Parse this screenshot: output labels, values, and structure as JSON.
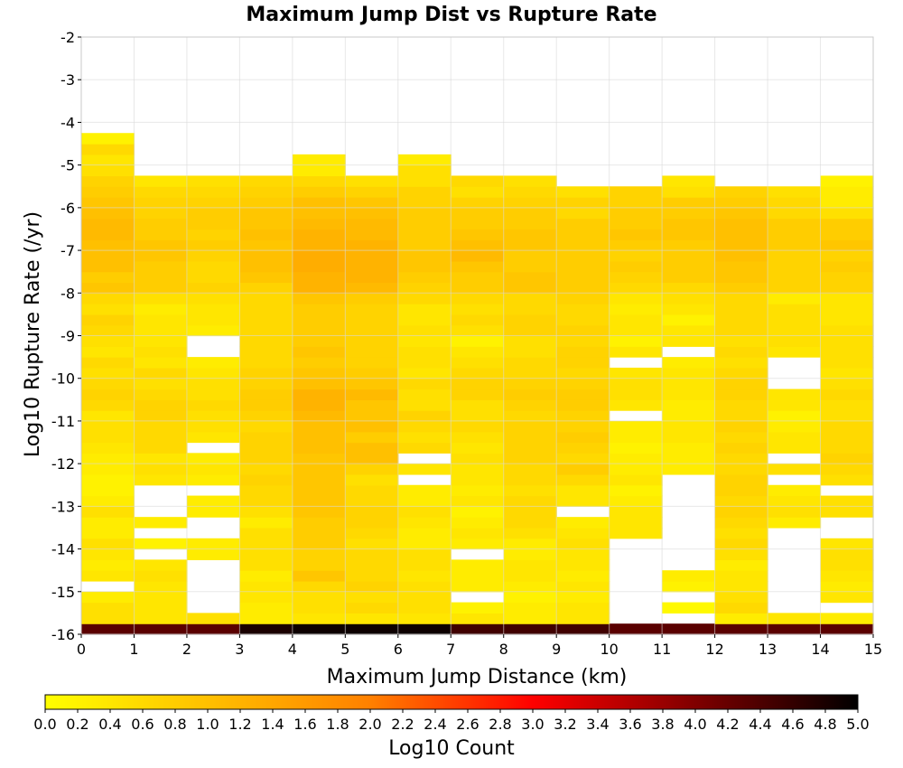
{
  "chart_data": {
    "type": "heatmap",
    "title": "Maximum Jump Dist vs Rupture Rate",
    "xlabel": "Maximum Jump Distance (km)",
    "ylabel": "Log10 Rupture Rate (/yr)",
    "xlim": [
      0,
      15
    ],
    "ylim": [
      -16,
      -2
    ],
    "x_ticks": [
      "0",
      "1",
      "2",
      "3",
      "4",
      "5",
      "6",
      "7",
      "8",
      "9",
      "10",
      "11",
      "12",
      "13",
      "14",
      "15"
    ],
    "y_ticks": [
      "-2",
      "-3",
      "-4",
      "-5",
      "-6",
      "-7",
      "-8",
      "-9",
      "-10",
      "-11",
      "-12",
      "-13",
      "-14",
      "-15",
      "-16"
    ],
    "colorbar": {
      "label": "Log10 Count",
      "range": [
        0.0,
        5.0
      ],
      "ticks": [
        "0.0",
        "0.2",
        "0.4",
        "0.6",
        "0.8",
        "1.0",
        "1.2",
        "1.4",
        "1.6",
        "1.8",
        "2.0",
        "2.2",
        "2.4",
        "2.6",
        "2.8",
        "3.0",
        "3.2",
        "3.4",
        "3.6",
        "3.8",
        "4.0",
        "4.2",
        "4.4",
        "4.6",
        "4.8",
        "5.0"
      ],
      "colormap_stops": [
        "#ffff00",
        "#ffc000",
        "#ff8000",
        "#ff0000",
        "#800000",
        "#000000"
      ]
    },
    "x_bin_width_km": 1,
    "y_bin_height_log10": 0.25,
    "first_row_center_log10_rate": -15.875,
    "rows_note": "rows[i] corresponds to Log10 rupture rate bin centred at -15.875 + 0.25*i; each row lists 15 Log10 Count values for distance bins 0-1 ... 14-15 km; null = empty bin",
    "rows": [
      [
        4.3,
        4.3,
        4.3,
        4.8,
        4.9,
        4.9,
        4.9,
        4.5,
        4.5,
        4.5,
        4.3,
        4.3,
        4.3,
        4.3,
        4.3
      ],
      [
        0.5,
        0.4,
        0.5,
        0.3,
        0.4,
        0.4,
        0.4,
        0.4,
        0.3,
        0.4,
        null,
        null,
        0.3,
        0.4,
        0.3
      ],
      [
        0.5,
        0.4,
        null,
        0.3,
        0.5,
        0.6,
        0.5,
        0.2,
        0.3,
        0.4,
        null,
        0.1,
        0.6,
        null,
        null
      ],
      [
        0.3,
        0.4,
        null,
        0.4,
        0.5,
        0.5,
        0.5,
        null,
        0.2,
        0.3,
        null,
        null,
        0.5,
        null,
        0.4
      ],
      [
        null,
        0.4,
        null,
        0.4,
        0.6,
        0.7,
        0.5,
        0.3,
        0.3,
        0.4,
        null,
        0.2,
        0.4,
        null,
        0.3
      ],
      [
        0.4,
        0.5,
        null,
        0.3,
        0.9,
        0.6,
        0.4,
        0.3,
        0.4,
        0.3,
        null,
        0.3,
        0.4,
        null,
        0.4
      ],
      [
        0.3,
        0.4,
        null,
        0.5,
        0.7,
        0.6,
        0.5,
        0.3,
        0.4,
        0.4,
        null,
        null,
        0.3,
        null,
        0.5
      ],
      [
        0.4,
        null,
        0.3,
        0.5,
        0.7,
        0.6,
        0.5,
        null,
        0.3,
        0.4,
        null,
        null,
        0.5,
        null,
        0.5
      ],
      [
        0.5,
        0.2,
        0.3,
        0.5,
        0.8,
        0.5,
        0.3,
        0.3,
        0.3,
        0.5,
        null,
        null,
        0.6,
        null,
        0.4
      ],
      [
        0.3,
        null,
        null,
        0.5,
        0.8,
        0.6,
        0.3,
        0.4,
        0.5,
        0.4,
        0.4,
        null,
        0.5,
        null,
        null
      ],
      [
        0.3,
        0.3,
        null,
        0.3,
        0.8,
        0.7,
        0.4,
        0.3,
        0.6,
        0.3,
        0.4,
        null,
        0.6,
        0.3,
        null
      ],
      [
        0.5,
        null,
        0.3,
        0.5,
        0.9,
        0.7,
        0.5,
        0.2,
        0.6,
        null,
        0.4,
        null,
        0.7,
        0.5,
        0.5
      ],
      [
        0.3,
        null,
        0.3,
        0.6,
        0.9,
        0.6,
        0.3,
        0.4,
        0.6,
        0.4,
        0.3,
        null,
        0.6,
        0.4,
        0.5
      ],
      [
        0.2,
        null,
        null,
        0.6,
        0.9,
        0.6,
        0.3,
        0.3,
        0.5,
        0.4,
        0.2,
        null,
        0.7,
        0.3,
        null
      ],
      [
        0.2,
        0.4,
        0.3,
        0.7,
        0.9,
        0.5,
        null,
        0.4,
        0.6,
        0.6,
        0.4,
        null,
        0.7,
        null,
        0.5
      ],
      [
        0.3,
        0.5,
        0.4,
        0.6,
        0.9,
        0.7,
        0.4,
        0.4,
        0.6,
        0.8,
        0.3,
        0.3,
        0.6,
        0.5,
        0.6
      ],
      [
        0.3,
        0.4,
        0.3,
        0.7,
        0.9,
        1.0,
        null,
        0.5,
        0.7,
        0.6,
        0.3,
        0.3,
        0.6,
        null,
        0.7
      ],
      [
        0.4,
        0.6,
        null,
        0.7,
        1.0,
        1.0,
        0.6,
        0.4,
        0.7,
        0.7,
        0.2,
        0.3,
        0.7,
        0.4,
        0.6
      ],
      [
        0.5,
        0.6,
        0.4,
        0.7,
        1.0,
        0.8,
        0.5,
        0.5,
        0.7,
        0.8,
        0.3,
        0.4,
        0.6,
        0.4,
        0.6
      ],
      [
        0.5,
        0.6,
        0.5,
        0.6,
        1.0,
        1.0,
        0.6,
        0.6,
        0.7,
        0.7,
        0.3,
        0.4,
        0.7,
        0.3,
        0.6
      ],
      [
        0.4,
        0.7,
        0.5,
        0.7,
        1.1,
        0.9,
        0.7,
        0.5,
        0.6,
        0.7,
        null,
        0.3,
        0.6,
        0.2,
        0.5
      ],
      [
        0.6,
        0.7,
        0.6,
        0.8,
        1.2,
        0.9,
        0.5,
        0.5,
        0.7,
        0.8,
        0.4,
        0.3,
        0.6,
        0.4,
        0.5
      ],
      [
        0.7,
        0.6,
        0.5,
        0.8,
        1.2,
        1.1,
        0.5,
        0.7,
        0.8,
        0.8,
        0.5,
        0.4,
        0.7,
        0.4,
        0.6
      ],
      [
        0.6,
        0.5,
        0.5,
        0.7,
        1.0,
        0.9,
        0.6,
        0.7,
        0.7,
        0.7,
        0.5,
        0.4,
        0.7,
        null,
        0.5
      ],
      [
        0.5,
        0.6,
        0.4,
        0.7,
        0.9,
        0.8,
        0.4,
        0.6,
        0.6,
        0.6,
        0.4,
        0.4,
        0.6,
        null,
        0.4
      ],
      [
        0.6,
        0.4,
        0.3,
        0.6,
        0.8,
        0.7,
        0.5,
        0.5,
        0.6,
        0.7,
        null,
        0.3,
        0.5,
        null,
        0.5
      ],
      [
        0.4,
        0.5,
        null,
        0.6,
        0.9,
        0.7,
        0.5,
        0.4,
        0.5,
        0.7,
        0.4,
        null,
        0.6,
        0.4,
        0.5
      ],
      [
        0.5,
        0.4,
        null,
        0.6,
        0.8,
        0.7,
        0.4,
        0.2,
        0.5,
        0.6,
        0.2,
        0.4,
        0.5,
        0.5,
        0.5
      ],
      [
        0.6,
        0.4,
        0.3,
        0.6,
        0.8,
        0.7,
        0.5,
        0.5,
        0.7,
        0.7,
        0.4,
        0.4,
        0.6,
        0.5,
        0.5
      ],
      [
        0.7,
        0.4,
        0.4,
        0.6,
        0.8,
        0.7,
        0.4,
        0.6,
        0.7,
        0.6,
        0.4,
        0.2,
        0.6,
        0.5,
        0.4
      ],
      [
        0.5,
        0.3,
        0.4,
        0.6,
        0.8,
        0.7,
        0.4,
        0.5,
        0.6,
        0.6,
        0.3,
        0.4,
        0.6,
        0.5,
        0.4
      ],
      [
        0.6,
        0.5,
        0.5,
        0.6,
        0.9,
        0.8,
        0.6,
        0.6,
        0.6,
        0.7,
        0.4,
        0.5,
        0.6,
        0.3,
        0.4
      ],
      [
        0.9,
        0.8,
        0.7,
        0.7,
        1.2,
        1.1,
        0.7,
        0.8,
        0.9,
        0.8,
        0.6,
        0.6,
        0.8,
        0.7,
        0.7
      ],
      [
        0.8,
        0.8,
        0.6,
        0.9,
        1.2,
        1.2,
        0.8,
        0.8,
        0.9,
        0.8,
        0.7,
        0.8,
        0.9,
        0.7,
        0.7
      ],
      [
        1.0,
        0.8,
        0.6,
        1.0,
        1.3,
        1.2,
        0.9,
        0.9,
        0.8,
        0.8,
        0.8,
        0.8,
        0.9,
        0.7,
        0.8
      ],
      [
        1.0,
        0.9,
        0.7,
        1.0,
        1.3,
        1.2,
        0.9,
        1.1,
        0.8,
        0.8,
        0.7,
        0.8,
        1.0,
        0.7,
        0.7
      ],
      [
        1.0,
        0.9,
        0.8,
        0.9,
        1.2,
        1.2,
        0.8,
        1.0,
        0.9,
        0.8,
        0.8,
        0.8,
        1.0,
        0.8,
        0.9
      ],
      [
        1.1,
        0.8,
        0.7,
        1.0,
        1.2,
        1.1,
        0.8,
        0.9,
        0.9,
        0.8,
        0.9,
        0.9,
        1.0,
        0.8,
        0.8
      ],
      [
        1.1,
        0.8,
        0.8,
        0.9,
        1.1,
        1.1,
        0.8,
        0.8,
        0.8,
        0.8,
        0.8,
        0.9,
        1.0,
        0.8,
        0.8
      ],
      [
        1.0,
        0.7,
        0.8,
        0.9,
        1.0,
        1.0,
        0.8,
        0.8,
        0.8,
        0.6,
        0.8,
        0.8,
        0.9,
        0.6,
        0.5
      ],
      [
        0.9,
        0.7,
        0.7,
        0.8,
        1.0,
        0.9,
        0.7,
        0.7,
        0.7,
        0.7,
        0.7,
        0.8,
        0.8,
        0.6,
        0.3
      ],
      [
        0.8,
        0.6,
        0.6,
        0.7,
        0.8,
        0.7,
        0.7,
        0.5,
        0.6,
        0.5,
        0.7,
        0.5,
        0.7,
        0.5,
        0.3
      ],
      [
        0.7,
        0.4,
        0.5,
        0.6,
        0.6,
        0.5,
        0.5,
        0.6,
        0.5,
        null,
        null,
        0.4,
        null,
        null,
        0.2
      ],
      [
        0.5,
        null,
        null,
        null,
        0.3,
        null,
        0.5,
        null,
        null,
        null,
        null,
        null,
        null,
        null,
        null
      ],
      [
        0.4,
        null,
        null,
        null,
        0.3,
        null,
        0.3,
        null,
        null,
        null,
        null,
        null,
        null,
        null,
        null
      ],
      [
        0.6,
        null,
        null,
        null,
        null,
        null,
        null,
        null,
        null,
        null,
        null,
        null,
        null,
        null,
        null
      ],
      [
        0.2,
        null,
        null,
        null,
        null,
        null,
        null,
        null,
        null,
        null,
        null,
        null,
        null,
        null,
        null
      ]
    ]
  }
}
